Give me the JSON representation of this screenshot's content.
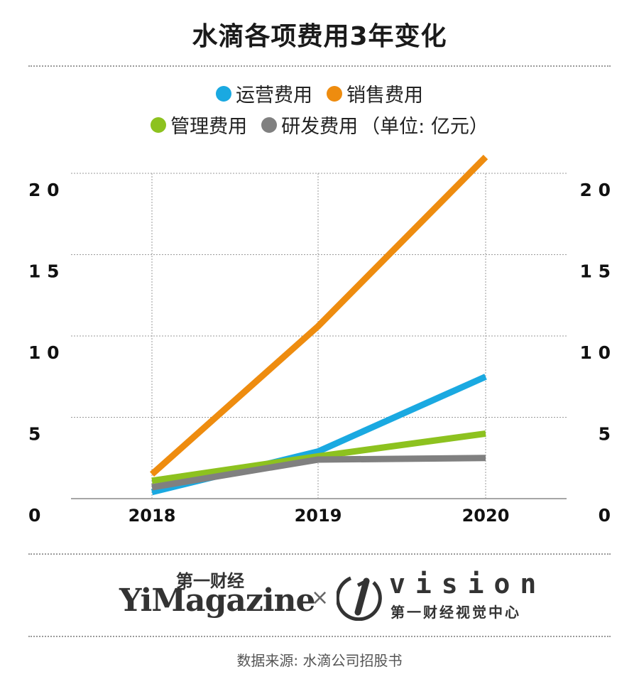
{
  "title": "水滴各项费用3年变化",
  "legend": {
    "note": "（单位: 亿元）"
  },
  "chart_data": {
    "type": "line",
    "title": "水滴各项费用3年变化",
    "unit": "亿元",
    "categories": [
      "2018",
      "2019",
      "2020"
    ],
    "series": [
      {
        "name": "运营费用",
        "color": "#1aa9e1",
        "values": [
          0.4,
          2.9,
          7.5
        ]
      },
      {
        "name": "销售费用",
        "color": "#ee8c0f",
        "values": [
          1.5,
          10.6,
          21.0
        ]
      },
      {
        "name": "管理费用",
        "color": "#8dc21f",
        "values": [
          1.1,
          2.6,
          4.0
        ]
      },
      {
        "name": "研发费用",
        "color": "#808080",
        "values": [
          0.7,
          2.4,
          2.5
        ]
      }
    ],
    "y_ticks": [
      "0",
      "5",
      "1 0",
      "1 5",
      "2 0"
    ],
    "y_tick_values": [
      0,
      5,
      10,
      15,
      20
    ],
    "ylim": [
      0,
      21
    ],
    "xlabel": "",
    "ylabel": "",
    "grid": true,
    "legend_position": "top"
  },
  "branding": {
    "cn_name": "第一财经",
    "en_name": "YiMagazine",
    "separator": "×",
    "vision_en": "vision",
    "vision_cn": "第一财经视觉中心"
  },
  "source": "数据来源: 水滴公司招股书"
}
